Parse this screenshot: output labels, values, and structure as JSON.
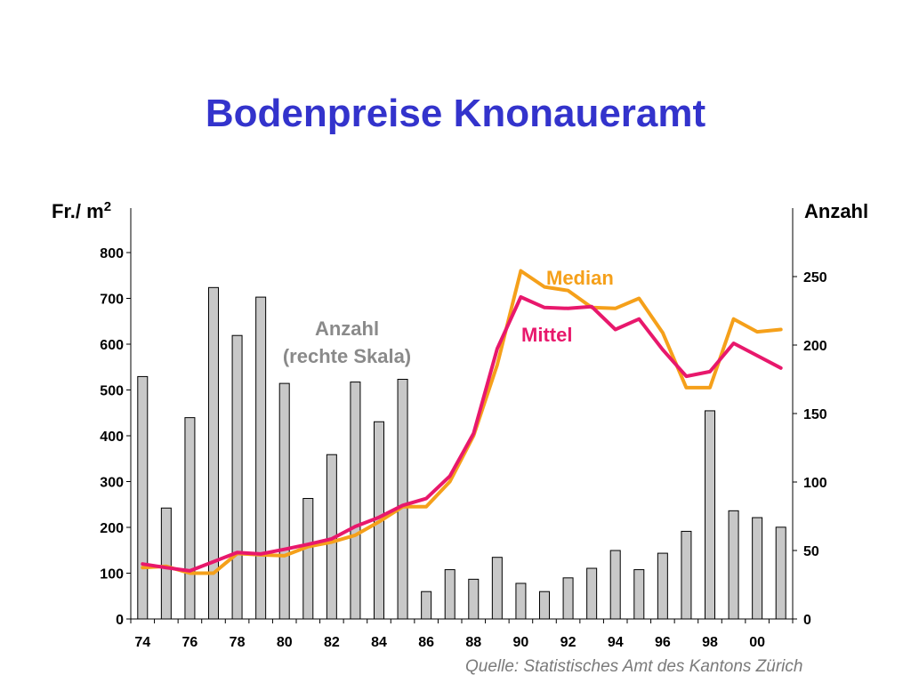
{
  "title": "Bodenpreise Knonaueramt",
  "source": "Quelle: Statistisches Amt des Kantons Zürich",
  "colors": {
    "title": "#3333cc",
    "mittel": "#e8186c",
    "median": "#f5a01a",
    "bars": "#c8c8c8",
    "anzahl_label": "#8a8a8a"
  },
  "chart_data": {
    "type": "bar+line",
    "title": "Bodenpreise Knonaueramt",
    "x": [
      "74",
      "75",
      "76",
      "77",
      "78",
      "79",
      "80",
      "81",
      "82",
      "83",
      "84",
      "85",
      "86",
      "87",
      "88",
      "89",
      "90",
      "91",
      "92",
      "93",
      "94",
      "95",
      "96",
      "97",
      "98",
      "99",
      "00",
      "01"
    ],
    "x_tick_labels": [
      "74",
      "76",
      "78",
      "80",
      "82",
      "84",
      "86",
      "88",
      "90",
      "92",
      "94",
      "96",
      "98",
      "00"
    ],
    "left_axis": {
      "label": "Fr./ m",
      "label_sup": "2",
      "range": [
        0,
        880
      ],
      "ticks": [
        "0",
        "100",
        "200",
        "300",
        "400",
        "500",
        "600",
        "700",
        "800"
      ]
    },
    "right_axis": {
      "label": "Anzahl",
      "range": [
        0,
        297
      ],
      "ticks": [
        "0",
        "50",
        "100",
        "150",
        "200",
        "250"
      ]
    },
    "series": [
      {
        "name": "Anzahl",
        "axis": "right",
        "type": "bar",
        "values": [
          177,
          81,
          147,
          242,
          207,
          235,
          172,
          88,
          120,
          173,
          144,
          175,
          20,
          36,
          29,
          45,
          26,
          20,
          30,
          37,
          50,
          36,
          48,
          64,
          152,
          79,
          74,
          67
        ]
      },
      {
        "name": "Mittel",
        "axis": "left",
        "type": "line",
        "values": [
          120,
          112,
          105,
          125,
          145,
          142,
          152,
          163,
          175,
          202,
          222,
          248,
          263,
          312,
          405,
          590,
          703,
          680,
          678,
          682,
          632,
          655,
          588,
          530,
          540,
          602,
          575,
          548
        ]
      },
      {
        "name": "Median",
        "axis": "left",
        "type": "line",
        "values": [
          112,
          115,
          100,
          100,
          143,
          140,
          138,
          158,
          168,
          183,
          212,
          245,
          245,
          300,
          400,
          555,
          760,
          725,
          717,
          680,
          678,
          700,
          625,
          505,
          505,
          655,
          627,
          632
        ]
      }
    ],
    "annotations": [
      "Anzahl",
      "(rechte Skala)",
      "Mittel",
      "Median"
    ],
    "grid": false
  }
}
